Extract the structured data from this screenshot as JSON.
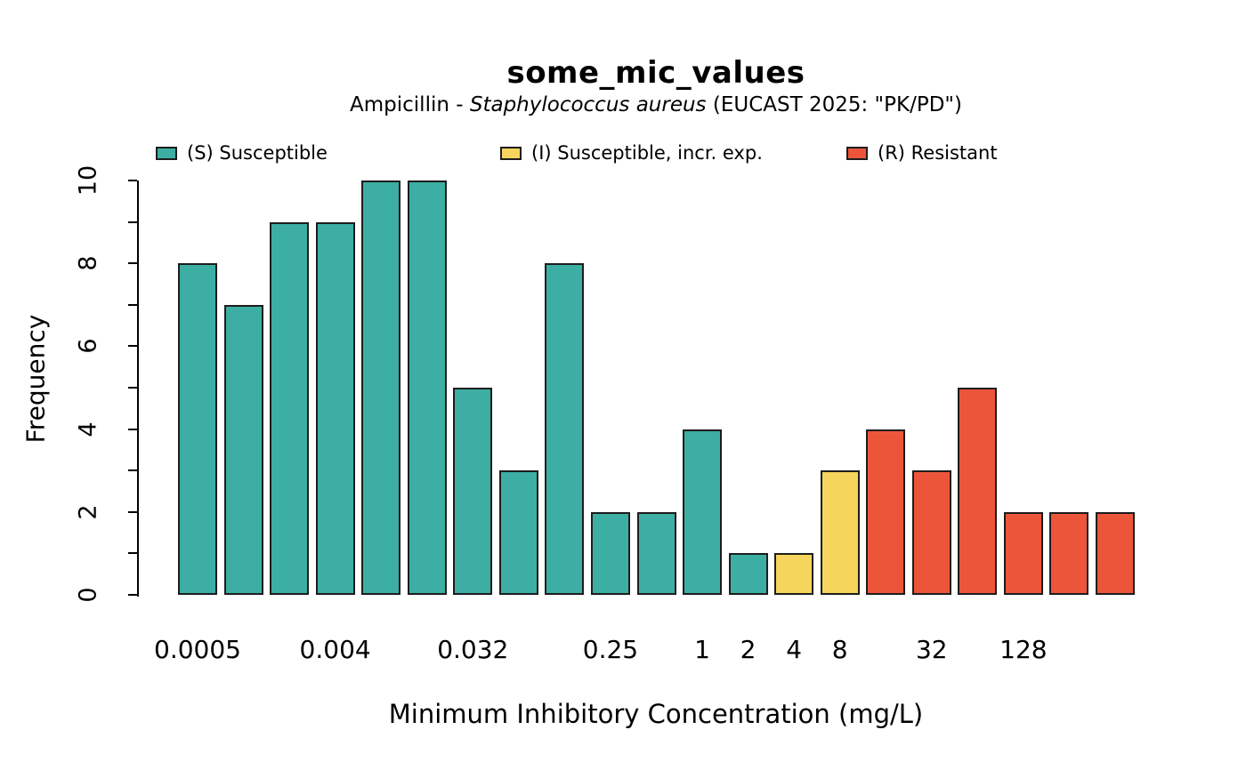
{
  "title": "some_mic_values",
  "subtitle_parts": {
    "prefix": "Ampicillin - ",
    "italic": "Staphylococcus aureus",
    "suffix": " (EUCAST 2025: \"PK/PD\")"
  },
  "legend": {
    "items": [
      {
        "label": "(S) Susceptible",
        "color": "#3CAEA3"
      },
      {
        "label": "(I) Susceptible, incr. exp.",
        "color": "#F6D55C"
      },
      {
        "label": "(R) Resistant",
        "color": "#ED553B"
      }
    ]
  },
  "chart_data": {
    "type": "bar",
    "title": "some_mic_values",
    "subtitle": "Ampicillin - Staphylococcus aureus (EUCAST 2025: \"PK/PD\")",
    "xlabel": "Minimum Inhibitory Concentration (mg/L)",
    "ylabel": "Frequency",
    "ylim": [
      0,
      10
    ],
    "grid": false,
    "legend_position": "top",
    "y_ticks": [
      0,
      1,
      2,
      3,
      4,
      5,
      6,
      7,
      8,
      9,
      10
    ],
    "y_tick_labels_shown": [
      "0",
      "2",
      "4",
      "6",
      "8",
      "10"
    ],
    "categories": [
      "0.0005",
      "0.001",
      "0.002",
      "0.004",
      "0.008",
      "0.016",
      "0.032",
      "0.064",
      "0.125",
      "0.25",
      "0.5",
      "1",
      "2",
      "4",
      "8",
      "16",
      "32",
      "64",
      "128",
      "256",
      "512"
    ],
    "values": [
      8,
      7,
      9,
      9,
      10,
      10,
      5,
      3,
      8,
      2,
      2,
      4,
      1,
      1,
      3,
      4,
      3,
      5,
      2,
      2,
      2
    ],
    "interpretation": [
      "S",
      "S",
      "S",
      "S",
      "S",
      "S",
      "S",
      "S",
      "S",
      "S",
      "S",
      "S",
      "S",
      "I",
      "I",
      "R",
      "R",
      "R",
      "R",
      "R",
      "R"
    ],
    "colors": {
      "S": "#3CAEA3",
      "I": "#F6D55C",
      "R": "#ED553B"
    },
    "bar_border_color": "#1d1d1d",
    "x_tick_labels_shown": [
      {
        "index": 0,
        "label": "0.0005"
      },
      {
        "index": 3,
        "label": "0.004"
      },
      {
        "index": 6,
        "label": "0.032"
      },
      {
        "index": 9,
        "label": "0.25"
      },
      {
        "index": 11,
        "label": "1"
      },
      {
        "index": 12,
        "label": "2"
      },
      {
        "index": 13,
        "label": "4"
      },
      {
        "index": 14,
        "label": "8"
      },
      {
        "index": 16,
        "label": "32"
      },
      {
        "index": 18,
        "label": "128"
      }
    ]
  }
}
